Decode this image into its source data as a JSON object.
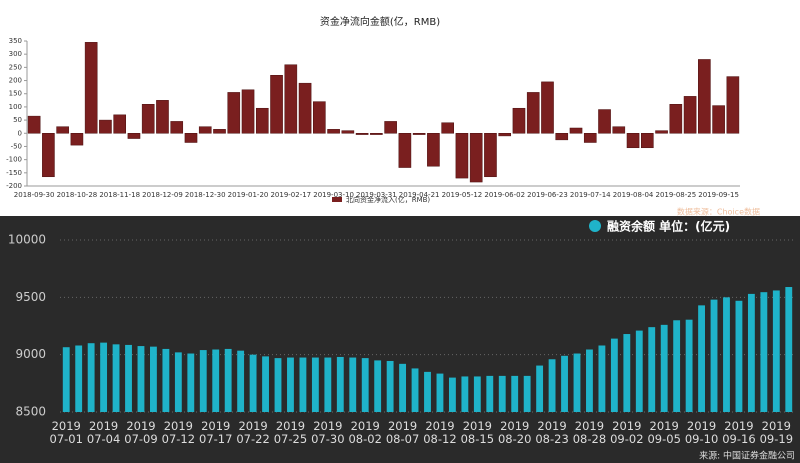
{
  "chart_data": [
    {
      "type": "bar",
      "title": "资金净流向金额(亿，RMB)",
      "categories": [
        "2018-09-30",
        null,
        null,
        "2018-10-28",
        null,
        null,
        "2018-11-18",
        null,
        null,
        "2018-12-09",
        null,
        null,
        "2018-12-30",
        null,
        null,
        "2019-01-20",
        null,
        null,
        "2019-02-17",
        null,
        null,
        "2019-03-10",
        null,
        null,
        "2019-03-31",
        null,
        null,
        "2019-04-21",
        null,
        null,
        "2019-05-12",
        null,
        null,
        "2019-06-02",
        null,
        null,
        "2019-06-23",
        null,
        null,
        "2019-07-14",
        null,
        null,
        "2019-08-04",
        null,
        null,
        "2019-08-25",
        null,
        null,
        "2019-09-15",
        null
      ],
      "series": [
        {
          "name": "北向资金净流入(亿，RMB)",
          "color": "#7a1f1f",
          "values": [
            65,
            -165,
            25,
            -45,
            345,
            50,
            70,
            -20,
            110,
            125,
            45,
            -35,
            25,
            15,
            155,
            165,
            95,
            220,
            260,
            190,
            120,
            15,
            10,
            -5,
            -5,
            45,
            -130,
            -5,
            -125,
            40,
            -170,
            -185,
            -165,
            -10,
            95,
            155,
            195,
            -25,
            20,
            -35,
            90,
            25,
            -55,
            -55,
            10,
            110,
            140,
            280,
            105,
            215
          ]
        }
      ],
      "ylim": [
        -200,
        350
      ],
      "yticks": [
        -200,
        -150,
        -100,
        -50,
        0,
        50,
        100,
        150,
        200,
        250,
        300,
        350
      ]
    },
    {
      "type": "bar",
      "categories": [
        "2019 07-01",
        null,
        null,
        "2019 07-04",
        null,
        null,
        "2019 07-09",
        null,
        null,
        "2019 07-12",
        null,
        null,
        "2019 07-17",
        null,
        null,
        "2019 07-22",
        null,
        null,
        "2019 07-25",
        null,
        null,
        "2019 07-30",
        null,
        null,
        "2019 08-02",
        null,
        null,
        "2019 08-07",
        null,
        null,
        "2019 08-12",
        null,
        null,
        "2019 08-15",
        null,
        null,
        "2019 08-20",
        null,
        null,
        "2019 08-23",
        null,
        null,
        "2019 08-28",
        null,
        null,
        "2019 09-02",
        null,
        null,
        "2019 09-05",
        null,
        null,
        "2019 09-10",
        null,
        null,
        "2019 09-16",
        null,
        null,
        "2019 09-19",
        null
      ],
      "series": [
        {
          "name": "融资余额 单位：(亿元)",
          "color": "#1fb3c9",
          "values": [
            9065,
            9080,
            9100,
            9105,
            9090,
            9085,
            9075,
            9070,
            9050,
            9020,
            9010,
            9040,
            9045,
            9050,
            9035,
            9000,
            8985,
            8970,
            8975,
            8975,
            8975,
            8975,
            8980,
            8975,
            8970,
            8950,
            8945,
            8920,
            8880,
            8850,
            8835,
            8800,
            8810,
            8810,
            8815,
            8815,
            8815,
            8815,
            8905,
            8960,
            8990,
            9010,
            9045,
            9080,
            9140,
            9180,
            9210,
            9240,
            9260,
            9300,
            9305,
            9430,
            9480,
            9500,
            9470,
            9530,
            9545,
            9560,
            9590
          ]
        }
      ],
      "ylim": [
        8500,
        10000
      ],
      "yticks": [
        8500,
        9000,
        9500,
        10000
      ],
      "grid": true,
      "annotations": [
        "数据来源：Choice数据",
        "来源: 中国证券金融公司"
      ]
    }
  ]
}
